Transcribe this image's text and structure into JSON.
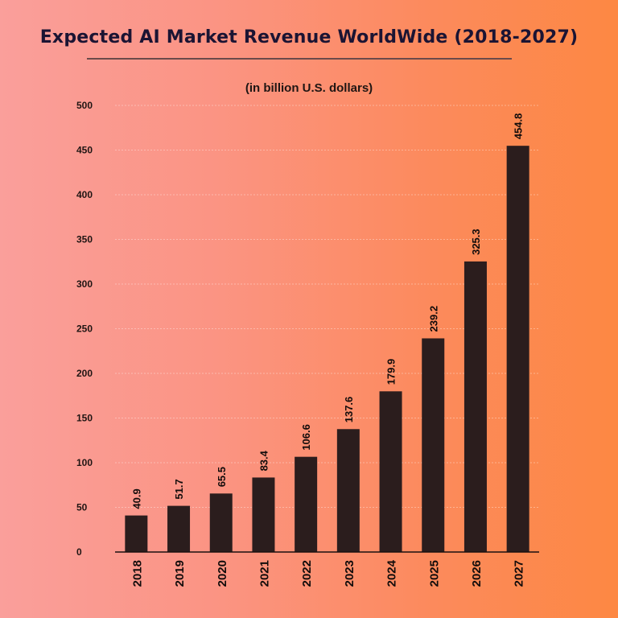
{
  "chart_data": {
    "type": "bar",
    "title": "Expected AI Market Revenue WorldWide (2018-2027)",
    "subtitle": "(in billion U.S. dollars)",
    "xlabel": "",
    "ylabel": "",
    "categories": [
      "2018",
      "2019",
      "2020",
      "2021",
      "2022",
      "2023",
      "2024",
      "2025",
      "2026",
      "2027"
    ],
    "values": [
      40.9,
      51.7,
      65.5,
      83.4,
      106.6,
      137.6,
      179.9,
      239.2,
      325.3,
      454.8
    ],
    "value_labels": [
      "40.9",
      "51.7",
      "65.5",
      "83.4",
      "106.6",
      "137.6",
      "179.9",
      "239.2",
      "325.3",
      "454.8"
    ],
    "ylim": [
      0,
      500
    ],
    "yticks": [
      "0",
      "50",
      "100",
      "150",
      "200",
      "250",
      "300",
      "350",
      "400",
      "450",
      "500"
    ],
    "grid": true,
    "legend": "none",
    "colors": {
      "bar": "#2b1d1d",
      "text": "#1b1433",
      "background_left": "#fa9f9b",
      "background_right": "#fd8843"
    }
  }
}
